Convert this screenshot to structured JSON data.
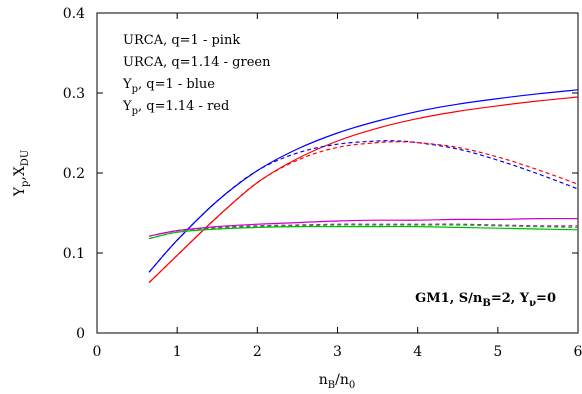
{
  "chart_data": {
    "type": "line",
    "xlabel": "n_B/n_0",
    "ylabel": "Y_p,X_DU",
    "xlim": [
      0,
      6
    ],
    "ylim": [
      0,
      0.4
    ],
    "xticks": [
      0,
      1,
      2,
      3,
      4,
      5,
      6
    ],
    "yticks": [
      0,
      0.1,
      0.2,
      0.3,
      0.4
    ],
    "xtick_labels": [
      "0",
      "1",
      "2",
      "3",
      "4",
      "5",
      "6"
    ],
    "ytick_labels": [
      "0",
      "0.1",
      "0.2",
      "0.3",
      "0.4"
    ],
    "grid": false,
    "legend": {
      "placement": "top-left",
      "entries": [
        {
          "main": "URCA, q=1 - pink",
          "sub": "",
          "rest": ""
        },
        {
          "main": "URCA, q=1.14 - green",
          "sub": "",
          "rest": ""
        },
        {
          "main": "Y",
          "sub": "p",
          "rest": ", q=1 - blue"
        },
        {
          "main": "Y",
          "sub": "p",
          "rest": ", q=1.14 - red"
        }
      ]
    },
    "annotation": {
      "p1": "GM1, S/n",
      "s1": "B",
      "p2": "=2, Y",
      "s2": "ν",
      "p3": "=0"
    },
    "series": [
      {
        "name": "Y_p, q=1 (solid)",
        "color": "#0000ff",
        "dash": "",
        "x": [
          0.65,
          1.0,
          1.5,
          2.0,
          2.5,
          3.0,
          3.5,
          4.0,
          4.5,
          5.0,
          5.5,
          6.0
        ],
        "y": [
          0.076,
          0.116,
          0.165,
          0.203,
          0.23,
          0.25,
          0.265,
          0.277,
          0.286,
          0.293,
          0.299,
          0.304
        ]
      },
      {
        "name": "Y_p, q=1.14 (solid)",
        "color": "#ff0000",
        "dash": "",
        "x": [
          0.65,
          1.0,
          1.5,
          2.0,
          2.5,
          3.0,
          3.5,
          4.0,
          4.5,
          5.0,
          5.5,
          6.0
        ],
        "y": [
          0.063,
          0.097,
          0.145,
          0.188,
          0.218,
          0.24,
          0.256,
          0.268,
          0.277,
          0.284,
          0.29,
          0.295
        ]
      },
      {
        "name": "Y_p, q=1 (dashed)",
        "color": "#0000ff",
        "dash": "4,3",
        "x": [
          0.65,
          1.0,
          1.5,
          2.0,
          2.5,
          3.0,
          3.5,
          3.75,
          4.0,
          4.5,
          5.0,
          5.5,
          6.0
        ],
        "y": [
          0.076,
          0.116,
          0.165,
          0.203,
          0.225,
          0.236,
          0.24,
          0.24,
          0.238,
          0.23,
          0.216,
          0.199,
          0.18
        ]
      },
      {
        "name": "Y_p, q=1.14 (dashed)",
        "color": "#ff0000",
        "dash": "4,3",
        "x": [
          0.65,
          1.0,
          1.5,
          2.0,
          2.5,
          3.0,
          3.5,
          3.75,
          4.0,
          4.5,
          5.0,
          5.5,
          6.0
        ],
        "y": [
          0.063,
          0.097,
          0.145,
          0.188,
          0.216,
          0.232,
          0.238,
          0.239,
          0.238,
          0.232,
          0.22,
          0.204,
          0.186
        ]
      },
      {
        "name": "URCA, q=1 (solid)",
        "color": "#cc00cc",
        "dash": "",
        "x": [
          0.65,
          1.0,
          1.5,
          2.0,
          2.5,
          3.0,
          3.5,
          4.0,
          4.5,
          5.0,
          5.5,
          6.0
        ],
        "y": [
          0.121,
          0.128,
          0.133,
          0.136,
          0.138,
          0.14,
          0.141,
          0.141,
          0.142,
          0.142,
          0.143,
          0.143
        ]
      },
      {
        "name": "URCA, q=1.14 (solid)",
        "color": "#00bb00",
        "dash": "",
        "x": [
          0.65,
          1.0,
          1.5,
          2.0,
          2.5,
          3.0,
          3.5,
          4.0,
          4.5,
          5.0,
          5.5,
          6.0
        ],
        "y": [
          0.118,
          0.126,
          0.13,
          0.132,
          0.133,
          0.133,
          0.133,
          0.133,
          0.132,
          0.131,
          0.13,
          0.129
        ]
      },
      {
        "name": "URCA, q=1 (dashed)",
        "color": "#cc00cc",
        "dash": "4,3",
        "x": [
          0.65,
          1.0,
          1.5,
          2.0,
          2.5,
          3.0,
          3.5,
          4.0,
          4.5,
          5.0,
          5.5,
          6.0
        ],
        "y": [
          0.121,
          0.128,
          0.132,
          0.134,
          0.135,
          0.136,
          0.136,
          0.136,
          0.136,
          0.135,
          0.134,
          0.134
        ]
      },
      {
        "name": "URCA, q=1.14 (dashed)",
        "color": "#00bb00",
        "dash": "4,3",
        "x": [
          0.65,
          1.0,
          1.5,
          2.0,
          2.5,
          3.0,
          3.5,
          4.0,
          4.5,
          5.0,
          5.5,
          6.0
        ],
        "y": [
          0.118,
          0.126,
          0.131,
          0.133,
          0.134,
          0.135,
          0.135,
          0.135,
          0.135,
          0.134,
          0.133,
          0.132
        ]
      }
    ]
  }
}
